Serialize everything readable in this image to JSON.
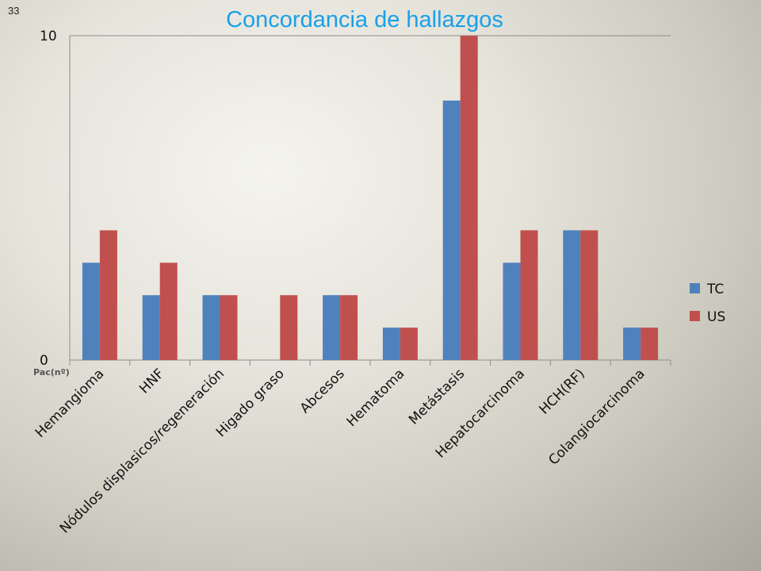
{
  "slide": {
    "number": "33"
  },
  "chart_data": {
    "type": "bar",
    "title": "Concordancia de hallazgos",
    "xlabel": "",
    "ylabel": "Pac(nº)",
    "ylim": [
      0,
      10
    ],
    "yticks": [
      "0",
      "10"
    ],
    "categories": [
      "Hemangioma",
      "HNF",
      "Nódulos displasicos/regeneración",
      "Higado graso",
      "Abcesos",
      "Hematoma",
      "Metástasis",
      "Hepatocarcinoma",
      "HCH(RF)",
      "Colangiocarcinoma"
    ],
    "series": [
      {
        "name": "TC",
        "color": "#4f81bd",
        "values": [
          3,
          2,
          2,
          0,
          2,
          1,
          8,
          3,
          4,
          1
        ]
      },
      {
        "name": "US",
        "color": "#c0504d",
        "values": [
          4,
          3,
          2,
          2,
          2,
          1,
          10,
          4,
          4,
          1
        ]
      }
    ],
    "grid": false,
    "legend_position": "right"
  }
}
